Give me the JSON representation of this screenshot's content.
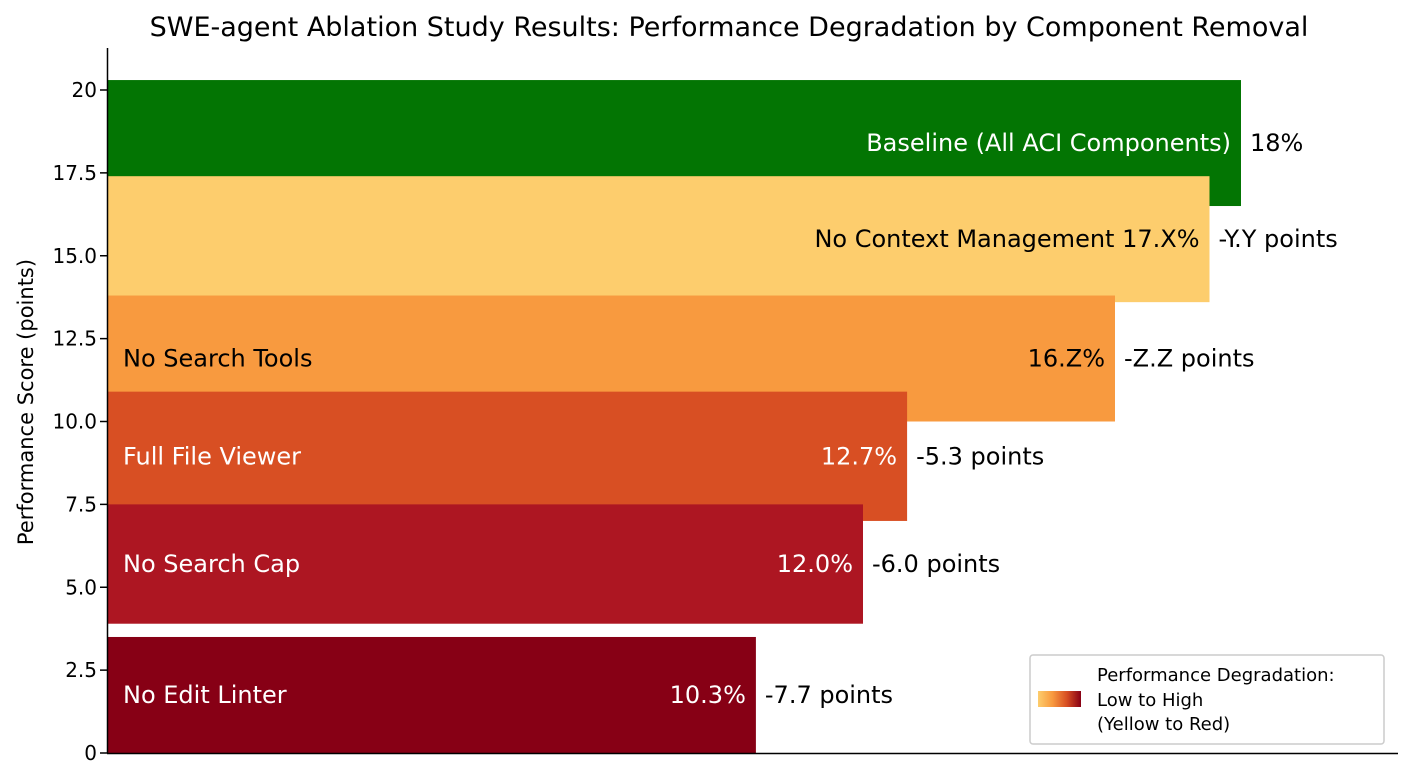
{
  "chart_data": {
    "type": "bar",
    "orientation": "horizontal",
    "title": "SWE-agent Ablation Study Results: Performance Degradation by Component Removal",
    "ylabel": "Performance Score (points)",
    "ylim": [
      0,
      21
    ],
    "yticks": [
      "0",
      "2.5",
      "5.0",
      "7.5",
      "10.0",
      "12.5",
      "15.0",
      "17.5",
      "20"
    ],
    "ytick_values": [
      0,
      2.5,
      5.0,
      7.5,
      10.0,
      12.5,
      15.0,
      17.5,
      20
    ],
    "xlim": [
      0,
      18.5
    ],
    "grid": false,
    "legend_position": "bottom-right",
    "bars": [
      {
        "label": "Baseline (All ACI Components)",
        "value": 18.0,
        "value_label": "",
        "annotation": "18%",
        "color": "#037503",
        "text_color": "#ffffff",
        "label_align": "right",
        "y_low": 16.5,
        "y_high": 20.3
      },
      {
        "label": "No Context Management 17.X%",
        "value": 17.5,
        "value_label": "",
        "annotation": "-Y.Y points",
        "color": "#fdcd6d",
        "text_color": "#000000",
        "label_align": "right",
        "y_low": 13.6,
        "y_high": 17.4
      },
      {
        "label": "No Search Tools",
        "value": 16.0,
        "value_label": "16.Z%",
        "annotation": "-Z.Z points",
        "color": "#f89a3f",
        "text_color": "#000000",
        "label_align": "left",
        "y_low": 10.0,
        "y_high": 13.8
      },
      {
        "label": "Full File Viewer",
        "value": 12.7,
        "value_label": "12.7%",
        "annotation": "-5.3 points",
        "color": "#d84f23",
        "text_color": "#ffffff",
        "label_align": "left",
        "y_low": 7.0,
        "y_high": 10.9
      },
      {
        "label": "No Search Cap",
        "value": 12.0,
        "value_label": "12.0%",
        "annotation": "-6.0 points",
        "color": "#ad1622",
        "text_color": "#ffffff",
        "label_align": "left",
        "y_low": 3.9,
        "y_high": 7.5
      },
      {
        "label": "No Edit Linter",
        "value": 10.3,
        "value_label": "10.3%",
        "annotation": "-7.7 points",
        "color": "#870015",
        "text_color": "#ffffff",
        "label_align": "left",
        "y_low": 0.0,
        "y_high": 3.5
      }
    ],
    "legend": {
      "lines": [
        "Performance Degradation:",
        "Low to High",
        "(Yellow to Red)"
      ],
      "gradient_colors": [
        "#fdcd6d",
        "#f89a3f",
        "#d84f23",
        "#870015"
      ]
    }
  }
}
